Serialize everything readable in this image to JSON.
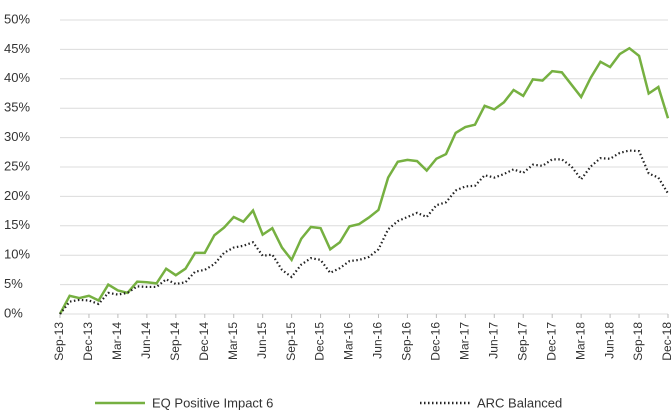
{
  "chart_data": {
    "type": "line",
    "categories": [
      "Sep-13",
      null,
      null,
      "Dec-13",
      null,
      null,
      "Mar-14",
      null,
      null,
      "Jun-14",
      null,
      null,
      "Sep-14",
      null,
      null,
      "Dec-14",
      null,
      null,
      "Mar-15",
      null,
      null,
      "Jun-15",
      null,
      null,
      "Sep-15",
      null,
      null,
      "Dec-15",
      null,
      null,
      "Mar-16",
      null,
      null,
      "Jun-16",
      null,
      null,
      "Sep-16",
      null,
      null,
      "Dec-16",
      null,
      null,
      "Mar-17",
      null,
      null,
      "Jun-17",
      null,
      null,
      "Sep-17",
      null,
      null,
      "Dec-17",
      null,
      null,
      "Mar-18",
      null,
      null,
      "Jun-18",
      null,
      null,
      "Sep-18",
      null,
      null,
      "Dec-18"
    ],
    "series": [
      {
        "name": "EQ Positive Impact 6",
        "color": "#76b041",
        "dash": "solid",
        "values": [
          0,
          3.1,
          2.7,
          3.1,
          2.3,
          5.0,
          4.0,
          3.6,
          5.5,
          5.4,
          5.2,
          7.7,
          6.6,
          7.7,
          10.4,
          10.4,
          13.4,
          14.7,
          16.5,
          15.7,
          17.6,
          13.5,
          14.6,
          11.3,
          9.2,
          12.8,
          14.8,
          14.6,
          11.0,
          12.2,
          14.9,
          15.3,
          16.4,
          17.7,
          23.2,
          25.9,
          26.2,
          26.0,
          24.4,
          26.4,
          27.2,
          30.8,
          31.8,
          32.2,
          35.4,
          34.8,
          36.0,
          38.1,
          37.1,
          39.9,
          39.7,
          41.3,
          41.1,
          39.0,
          36.9,
          40.2,
          42.9,
          42.0,
          44.2,
          45.2,
          43.9,
          37.5,
          38.6,
          33.3
        ]
      },
      {
        "name": "ARC Balanced",
        "color": "#222222",
        "dash": "dotted",
        "values": [
          0,
          2.1,
          2.4,
          2.3,
          1.7,
          3.6,
          3.3,
          3.6,
          4.7,
          4.6,
          4.6,
          5.9,
          5.1,
          5.4,
          7.2,
          7.5,
          8.5,
          10.4,
          11.3,
          11.6,
          12.2,
          9.9,
          10.1,
          7.5,
          6.3,
          8.4,
          9.5,
          9.2,
          7.0,
          7.8,
          9.0,
          9.2,
          9.7,
          11.0,
          14.4,
          15.8,
          16.5,
          17.2,
          16.5,
          18.5,
          19.0,
          21.0,
          21.7,
          21.8,
          23.6,
          23.2,
          23.8,
          24.6,
          24.0,
          25.4,
          25.2,
          26.3,
          26.3,
          25.1,
          22.9,
          25.1,
          26.5,
          26.4,
          27.4,
          27.8,
          27.7,
          23.9,
          23.2,
          20.5
        ]
      }
    ],
    "ylim": [
      0,
      50
    ],
    "yticks": [
      {
        "value": 0,
        "label": "0%"
      },
      {
        "value": 5,
        "label": "5%"
      },
      {
        "value": 10,
        "label": "10%"
      },
      {
        "value": 15,
        "label": "15%"
      },
      {
        "value": 20,
        "label": "20%"
      },
      {
        "value": 25,
        "label": "25%"
      },
      {
        "value": 30,
        "label": "30%"
      },
      {
        "value": 35,
        "label": "35%"
      },
      {
        "value": 40,
        "label": "40%"
      },
      {
        "value": 45,
        "label": "45%"
      },
      {
        "value": 50,
        "label": "50%"
      }
    ],
    "grid": true,
    "legend": "bottom"
  }
}
